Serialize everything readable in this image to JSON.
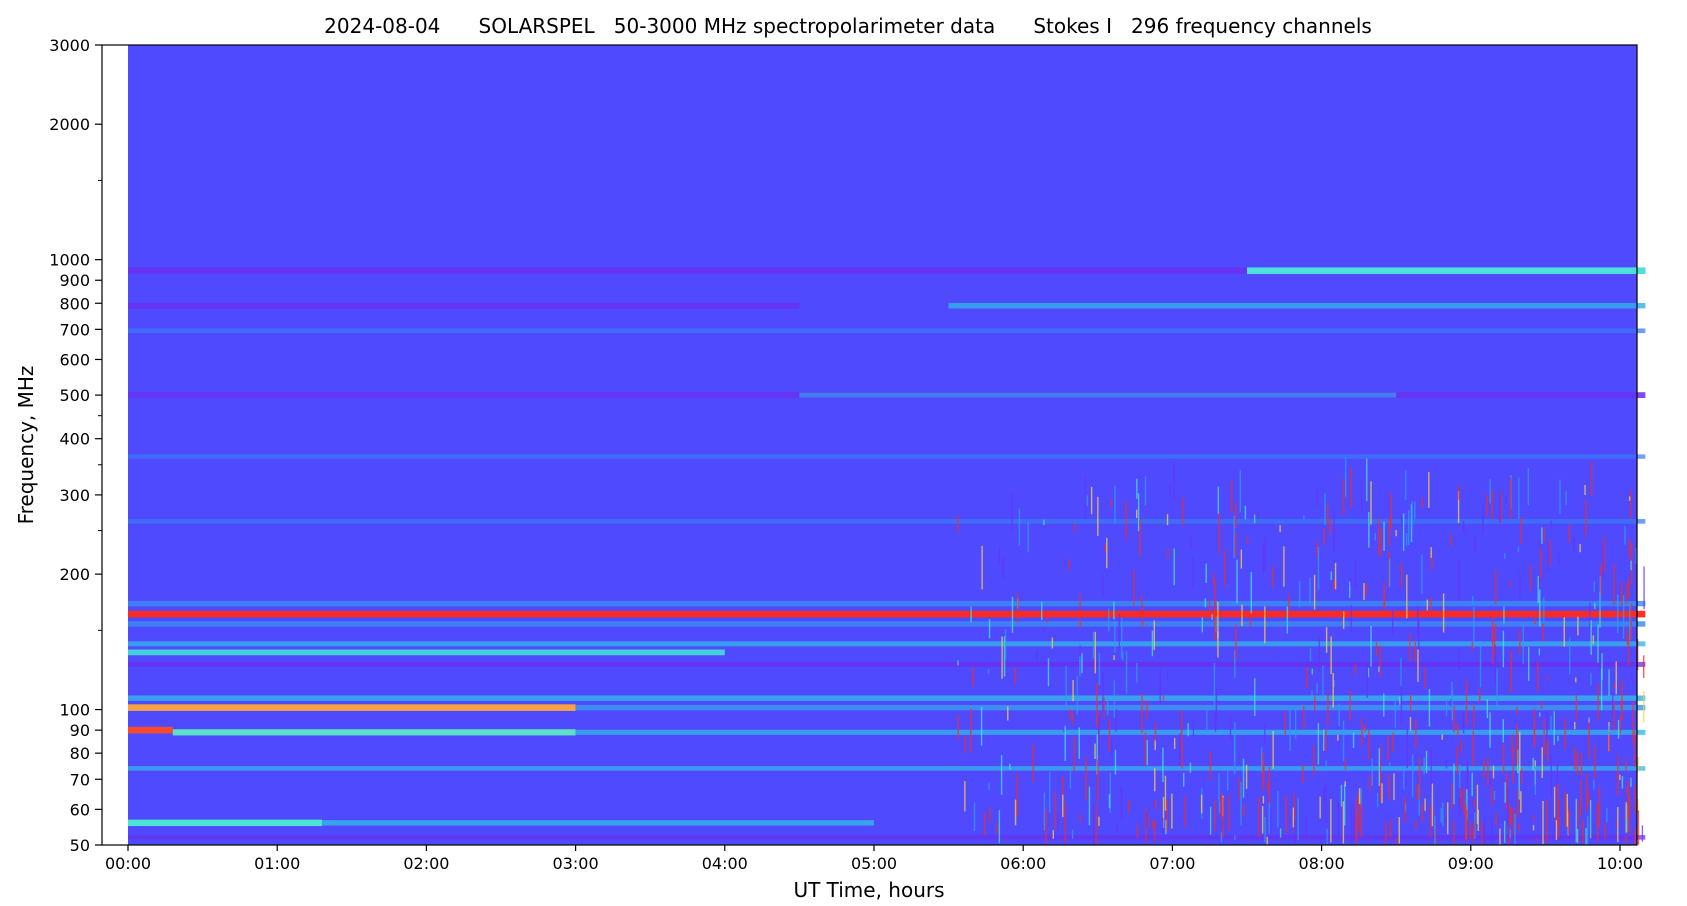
{
  "chart_data": {
    "type": "heatmap",
    "title": "2024-08-04      SOLARSPEL   50-3000 MHz spectropolarimeter data      Stokes I   296 frequency channels",
    "xlabel": "UT Time, hours",
    "ylabel": "Frequency, MHz",
    "x_range_hours": [
      0.0,
      10.17
    ],
    "x_ticks": [
      {
        "value": 0,
        "label": "00:00"
      },
      {
        "value": 1,
        "label": "01:00"
      },
      {
        "value": 2,
        "label": "02:00"
      },
      {
        "value": 3,
        "label": "03:00"
      },
      {
        "value": 4,
        "label": "04:00"
      },
      {
        "value": 5,
        "label": "05:00"
      },
      {
        "value": 6,
        "label": "06:00"
      },
      {
        "value": 7,
        "label": "07:00"
      },
      {
        "value": 8,
        "label": "08:00"
      },
      {
        "value": 9,
        "label": "09:00"
      },
      {
        "value": 10,
        "label": "10:00"
      }
    ],
    "y_scale": "log",
    "y_range_mhz": [
      50,
      3000
    ],
    "y_ticks": [
      {
        "value": 50,
        "label": "50"
      },
      {
        "value": 60,
        "label": "60"
      },
      {
        "value": 70,
        "label": "70"
      },
      {
        "value": 80,
        "label": "80"
      },
      {
        "value": 90,
        "label": "90"
      },
      {
        "value": 100,
        "label": "100"
      },
      {
        "value": 200,
        "label": "200"
      },
      {
        "value": 300,
        "label": "300"
      },
      {
        "value": 400,
        "label": "400"
      },
      {
        "value": 500,
        "label": "500"
      },
      {
        "value": 600,
        "label": "600"
      },
      {
        "value": 700,
        "label": "700"
      },
      {
        "value": 800,
        "label": "800"
      },
      {
        "value": 900,
        "label": "900"
      },
      {
        "value": 1000,
        "label": "1000"
      },
      {
        "value": 2000,
        "label": "2000"
      },
      {
        "value": 3000,
        "label": "3000"
      }
    ],
    "y_minor_ticks": [
      150,
      250,
      350,
      450,
      1500
    ],
    "colormap": "rainbow",
    "colors": {
      "background": "#4f4afe",
      "low": "#6633f8",
      "mid": "#2c9ef0",
      "cyan": "#44e4d8",
      "high": "#ff2a1a"
    },
    "bands": [
      {
        "freq_mhz": 945,
        "t_start": 0.0,
        "t_end": 10.17,
        "color": "#6a30f0",
        "strength": 0.8
      },
      {
        "freq_mhz": 945,
        "t_start": 7.5,
        "t_end": 10.17,
        "color": "#4ce8d6",
        "strength": 0.9
      },
      {
        "freq_mhz": 790,
        "t_start": 0.0,
        "t_end": 4.5,
        "color": "#6a30f0",
        "strength": 0.7
      },
      {
        "freq_mhz": 790,
        "t_start": 5.5,
        "t_end": 10.17,
        "color": "#34b0ec",
        "strength": 0.6
      },
      {
        "freq_mhz": 695,
        "t_start": 0.0,
        "t_end": 10.17,
        "color": "#3a7af4",
        "strength": 0.4
      },
      {
        "freq_mhz": 500,
        "t_start": 0.0,
        "t_end": 10.17,
        "color": "#6a30f0",
        "strength": 0.7
      },
      {
        "freq_mhz": 500,
        "t_start": 4.5,
        "t_end": 8.5,
        "color": "#3696ee",
        "strength": 0.5
      },
      {
        "freq_mhz": 365,
        "t_start": 0.0,
        "t_end": 10.17,
        "color": "#3a7af4",
        "strength": 0.35
      },
      {
        "freq_mhz": 262,
        "t_start": 0.0,
        "t_end": 10.17,
        "color": "#3a7af4",
        "strength": 0.4
      },
      {
        "freq_mhz": 172,
        "t_start": 0.0,
        "t_end": 10.17,
        "color": "#3a8cf0",
        "strength": 0.6
      },
      {
        "freq_mhz": 163,
        "t_start": 0.0,
        "t_end": 10.17,
        "color": "#ff2a1a",
        "strength": 0.9
      },
      {
        "freq_mhz": 155,
        "t_start": 0.0,
        "t_end": 10.17,
        "color": "#3a8cf0",
        "strength": 0.6
      },
      {
        "freq_mhz": 140,
        "t_start": 0.0,
        "t_end": 10.17,
        "color": "#34b6ea",
        "strength": 0.5
      },
      {
        "freq_mhz": 134,
        "t_start": 0.0,
        "t_end": 4.0,
        "color": "#44e4d8",
        "strength": 0.7
      },
      {
        "freq_mhz": 126,
        "t_start": 0.0,
        "t_end": 10.17,
        "color": "#6a30f0",
        "strength": 0.5
      },
      {
        "freq_mhz": 106,
        "t_start": 0.0,
        "t_end": 10.17,
        "color": "#34b6ea",
        "strength": 0.6
      },
      {
        "freq_mhz": 101,
        "t_start": 0.0,
        "t_end": 3.0,
        "color": "#ffa53a",
        "strength": 0.9
      },
      {
        "freq_mhz": 101,
        "t_start": 3.0,
        "t_end": 10.17,
        "color": "#3a9af0",
        "strength": 0.6
      },
      {
        "freq_mhz": 90,
        "t_start": 0.0,
        "t_end": 0.3,
        "color": "#ff4a20",
        "strength": 0.9
      },
      {
        "freq_mhz": 89,
        "t_start": 0.3,
        "t_end": 3.0,
        "color": "#5ef0c0",
        "strength": 0.8
      },
      {
        "freq_mhz": 89,
        "t_start": 3.0,
        "t_end": 10.17,
        "color": "#34b6ea",
        "strength": 0.5
      },
      {
        "freq_mhz": 74,
        "t_start": 0.0,
        "t_end": 10.17,
        "color": "#34b6ea",
        "strength": 0.4
      },
      {
        "freq_mhz": 56,
        "t_start": 0.0,
        "t_end": 1.3,
        "color": "#4cf0d0",
        "strength": 0.85
      },
      {
        "freq_mhz": 56,
        "t_start": 1.3,
        "t_end": 5.0,
        "color": "#34b6ea",
        "strength": 0.6
      },
      {
        "freq_mhz": 52,
        "t_start": 0.0,
        "t_end": 10.17,
        "color": "#6a30f0",
        "strength": 0.4
      }
    ],
    "noise_region": {
      "t_start": 5.5,
      "t_end": 10.17,
      "f_min_mhz": 50,
      "f_max_mhz": 300
    }
  }
}
